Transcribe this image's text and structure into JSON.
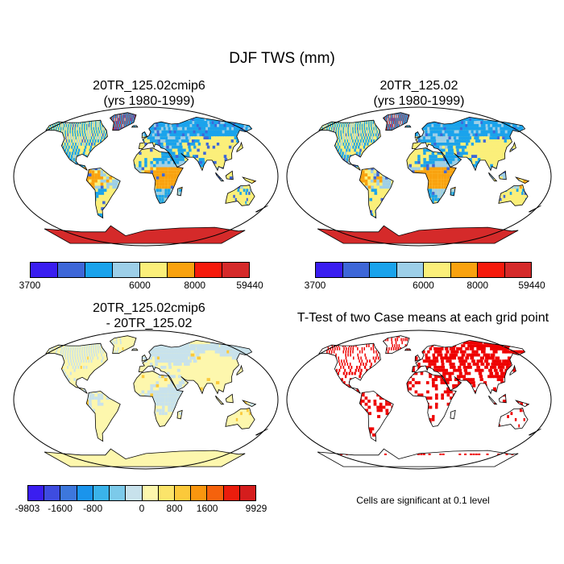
{
  "title": "DJF TWS (mm)",
  "panels": [
    {
      "id": "cmip6",
      "title_line1": "20TR_125.02cmip6",
      "title_line2": "(yrs 1980-1999)",
      "field": "Total water storage (mm), DJF climatology"
    },
    {
      "id": "base",
      "title_line1": "20TR_125.02",
      "title_line2": "(yrs 1980-1999)",
      "field": "Total water storage (mm), DJF climatology"
    },
    {
      "id": "diff",
      "title_line1": "20TR_125.02cmip6",
      "title_line2": "- 20TR_125.02",
      "field": "Difference (mm)"
    },
    {
      "id": "ttest",
      "title_line1": "T-Test of two Case means at each grid point",
      "title_line2": "",
      "field": "Significant cells (red)"
    }
  ],
  "colorbar_abs": {
    "colors": [
      "#3a1ef0",
      "#3e67d8",
      "#1aa3ec",
      "#9dcfe8",
      "#fbef7a",
      "#f9a20f",
      "#f51a0c",
      "#d52a2a"
    ],
    "tick_labels": [
      "3700",
      "6000",
      "8000",
      "59440"
    ]
  },
  "colorbar_diff": {
    "colors": [
      "#3a1ef0",
      "#3e4ce0",
      "#3d77dc",
      "#1a94ec",
      "#3ab3ea",
      "#7ccaea",
      "#c8e2ec",
      "#fdf7ad",
      "#fbe46a",
      "#fbc93a",
      "#f9960f",
      "#f5620c",
      "#ea1d0d",
      "#d51d1d"
    ],
    "tick_labels": [
      "-9803",
      "-1600",
      "-800",
      "0",
      "800",
      "1600",
      "9929"
    ]
  },
  "ttest_note": "Cells are significant at 0.1 level",
  "colors": {
    "land_abs": "#fbef7a",
    "land_diff": "#fdf7ad",
    "antarctica_abs": "#d52a2a",
    "sig": "#ee0000"
  }
}
